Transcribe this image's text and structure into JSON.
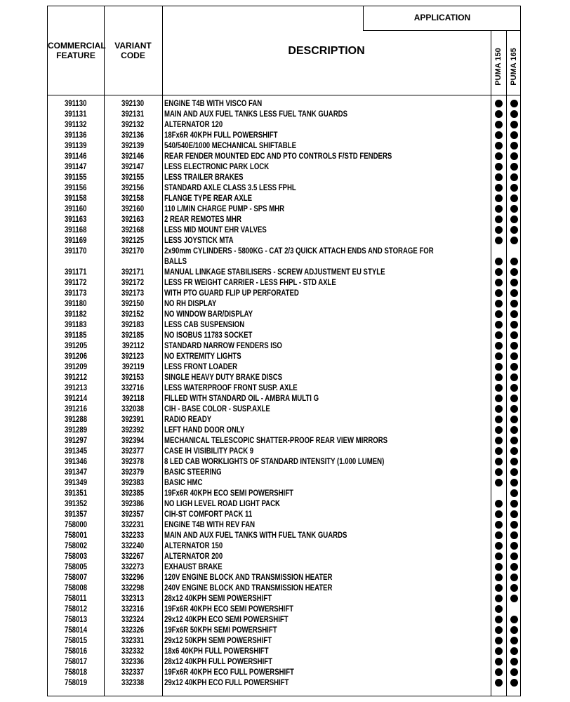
{
  "header": {
    "commercial_feature": [
      "COMMERCIAL",
      "FEATURE"
    ],
    "variant_code": [
      "VARIANT",
      "CODE"
    ],
    "description": "DESCRIPTION",
    "application": "APPLICATION",
    "models": [
      "PUMA 150",
      "PUMA 165"
    ]
  },
  "dot_symbol": "filled-circle",
  "rows": [
    {
      "cf": "391130",
      "vc": "392130",
      "desc": [
        "ENGINE T4B WITH VISCO FAN"
      ],
      "p150": true,
      "p165": true
    },
    {
      "cf": "391131",
      "vc": "392131",
      "desc": [
        "MAIN AND AUX FUEL TANKS LESS FUEL TANK GUARDS"
      ],
      "p150": true,
      "p165": true
    },
    {
      "cf": "391132",
      "vc": "392132",
      "desc": [
        "ALTERNATOR 120"
      ],
      "p150": true,
      "p165": true
    },
    {
      "cf": "391136",
      "vc": "392136",
      "desc": [
        "18Fx6R 40KPH FULL POWERSHIFT"
      ],
      "p150": true,
      "p165": true
    },
    {
      "cf": "391139",
      "vc": "392139",
      "desc": [
        "540/540E/1000 MECHANICAL SHIFTABLE"
      ],
      "p150": true,
      "p165": true
    },
    {
      "cf": "391146",
      "vc": "392146",
      "desc": [
        "REAR FENDER MOUNTED EDC AND PTO CONTROLS F/STD FENDERS"
      ],
      "p150": true,
      "p165": true
    },
    {
      "cf": "391147",
      "vc": "392147",
      "desc": [
        "LESS ELECTRONIC PARK LOCK"
      ],
      "p150": true,
      "p165": true
    },
    {
      "cf": "391155",
      "vc": "392155",
      "desc": [
        "LESS TRAILER BRAKES"
      ],
      "p150": true,
      "p165": true
    },
    {
      "cf": "391156",
      "vc": "392156",
      "desc": [
        "STANDARD AXLE CLASS 3.5 LESS FPHL"
      ],
      "p150": true,
      "p165": true
    },
    {
      "cf": "391158",
      "vc": "392158",
      "desc": [
        "FLANGE TYPE REAR AXLE"
      ],
      "p150": true,
      "p165": true
    },
    {
      "cf": "391160",
      "vc": "392160",
      "desc": [
        "110 L/MIN CHARGE PUMP - SPS MHR"
      ],
      "p150": true,
      "p165": true
    },
    {
      "cf": "391163",
      "vc": "392163",
      "desc": [
        "2 REAR REMOTES MHR"
      ],
      "p150": true,
      "p165": true
    },
    {
      "cf": "391168",
      "vc": "392168",
      "desc": [
        "LESS MID MOUNT EHR VALVES"
      ],
      "p150": true,
      "p165": true
    },
    {
      "cf": "391169",
      "vc": "392125",
      "desc": [
        "LESS JOYSTICK MTA"
      ],
      "p150": true,
      "p165": true
    },
    {
      "cf": "391170",
      "vc": "392170",
      "desc": [
        "2x90mm CYLINDERS - 5800KG - CAT 2/3 QUICK ATTACH ENDS AND STORAGE FOR",
        "BALLS"
      ],
      "p150": true,
      "p165": true
    },
    {
      "cf": "391171",
      "vc": "392171",
      "desc": [
        "MANUAL LINKAGE STABILISERS - SCREW ADJUSTMENT EU STYLE"
      ],
      "p150": true,
      "p165": true
    },
    {
      "cf": "391172",
      "vc": "392172",
      "desc": [
        "LESS FR WEIGHT CARRIER - LESS FHPL - STD AXLE"
      ],
      "p150": true,
      "p165": true
    },
    {
      "cf": "391173",
      "vc": "392173",
      "desc": [
        "WITH PTO GUARD FLIP UP PERFORATED"
      ],
      "p150": true,
      "p165": true
    },
    {
      "cf": "391180",
      "vc": "392150",
      "desc": [
        "NO RH DISPLAY"
      ],
      "p150": true,
      "p165": true
    },
    {
      "cf": "391182",
      "vc": "392152",
      "desc": [
        "NO WINDOW BAR/DISPLAY"
      ],
      "p150": true,
      "p165": true
    },
    {
      "cf": "391183",
      "vc": "392183",
      "desc": [
        "LESS CAB SUSPENSION"
      ],
      "p150": true,
      "p165": true
    },
    {
      "cf": "391185",
      "vc": "392185",
      "desc": [
        "NO ISOBUS 11783 SOCKET"
      ],
      "p150": true,
      "p165": true
    },
    {
      "cf": "391205",
      "vc": "392112",
      "desc": [
        "STANDARD NARROW FENDERS ISO"
      ],
      "p150": true,
      "p165": true
    },
    {
      "cf": "391206",
      "vc": "392123",
      "desc": [
        "NO EXTREMITY LIGHTS"
      ],
      "p150": true,
      "p165": true
    },
    {
      "cf": "391209",
      "vc": "392119",
      "desc": [
        "LESS FRONT LOADER"
      ],
      "p150": true,
      "p165": true
    },
    {
      "cf": "391212",
      "vc": "392153",
      "desc": [
        "SINGLE HEAVY DUTY BRAKE DISCS"
      ],
      "p150": true,
      "p165": true
    },
    {
      "cf": "391213",
      "vc": "332716",
      "desc": [
        "LESS WATERPROOF FRONT SUSP. AXLE"
      ],
      "p150": true,
      "p165": true
    },
    {
      "cf": "391214",
      "vc": "392118",
      "desc": [
        "FILLED WITH STANDARD OIL - AMBRA MULTI G"
      ],
      "p150": true,
      "p165": true
    },
    {
      "cf": "391216",
      "vc": "332038",
      "desc": [
        "CIH - BASE COLOR - SUSP.AXLE"
      ],
      "p150": true,
      "p165": true
    },
    {
      "cf": "391288",
      "vc": "392391",
      "desc": [
        "RADIO READY"
      ],
      "p150": true,
      "p165": true
    },
    {
      "cf": "391289",
      "vc": "392392",
      "desc": [
        "LEFT HAND DOOR ONLY"
      ],
      "p150": true,
      "p165": true
    },
    {
      "cf": "391297",
      "vc": "392394",
      "desc": [
        "MECHANICAL TELESCOPIC SHATTER-PROOF REAR VIEW MIRRORS"
      ],
      "p150": true,
      "p165": true
    },
    {
      "cf": "391345",
      "vc": "392377",
      "desc": [
        "CASE IH VISIBILITY PACK 9"
      ],
      "p150": true,
      "p165": true
    },
    {
      "cf": "391346",
      "vc": "392378",
      "desc": [
        "8 LED CAB WORKLIGHTS OF STANDARD INTENSITY (1.000 LUMEN)"
      ],
      "p150": true,
      "p165": true
    },
    {
      "cf": "391347",
      "vc": "392379",
      "desc": [
        "BASIC STEERING"
      ],
      "p150": true,
      "p165": true
    },
    {
      "cf": "391349",
      "vc": "392383",
      "desc": [
        "BASIC HMC"
      ],
      "p150": true,
      "p165": true
    },
    {
      "cf": "391351",
      "vc": "392385",
      "desc": [
        "19Fx6R 40KPH ECO SEMI POWERSHIFT"
      ],
      "p150": false,
      "p165": true
    },
    {
      "cf": "391352",
      "vc": "392386",
      "desc": [
        "NO LIGH LEVEL ROAD LIGHT PACK"
      ],
      "p150": true,
      "p165": true
    },
    {
      "cf": "391357",
      "vc": "392357",
      "desc": [
        "CIH-ST COMFORT PACK 11"
      ],
      "p150": true,
      "p165": true
    },
    {
      "cf": "758000",
      "vc": "332231",
      "desc": [
        "ENGINE T4B WITH REV FAN"
      ],
      "p150": true,
      "p165": true
    },
    {
      "cf": "758001",
      "vc": "332233",
      "desc": [
        "MAIN AND AUX FUEL TANKS WITH FUEL TANK GUARDS"
      ],
      "p150": true,
      "p165": true
    },
    {
      "cf": "758002",
      "vc": "332240",
      "desc": [
        "ALTERNATOR 150"
      ],
      "p150": true,
      "p165": true
    },
    {
      "cf": "758003",
      "vc": "332267",
      "desc": [
        "ALTERNATOR 200"
      ],
      "p150": true,
      "p165": true
    },
    {
      "cf": "758005",
      "vc": "332273",
      "desc": [
        "EXHAUST BRAKE"
      ],
      "p150": true,
      "p165": true
    },
    {
      "cf": "758007",
      "vc": "332296",
      "desc": [
        "120V ENGINE BLOCK AND TRANSMISSION HEATER"
      ],
      "p150": true,
      "p165": true
    },
    {
      "cf": "758008",
      "vc": "332298",
      "desc": [
        "240V ENGINE BLOCK AND TRANSMISSION HEATER"
      ],
      "p150": true,
      "p165": true
    },
    {
      "cf": "758011",
      "vc": "332313",
      "desc": [
        "28x12 40KPH SEMI POWERSHIFT"
      ],
      "p150": true,
      "p165": true
    },
    {
      "cf": "758012",
      "vc": "332316",
      "desc": [
        "19Fx6R 40KPH ECO SEMI POWERSHIFT"
      ],
      "p150": true,
      "p165": false
    },
    {
      "cf": "758013",
      "vc": "332324",
      "desc": [
        "29x12 40KPH ECO SEMI POWERSHIFT"
      ],
      "p150": true,
      "p165": true
    },
    {
      "cf": "758014",
      "vc": "332326",
      "desc": [
        "19Fx6R 50KPH SEMI POWERSHIFT"
      ],
      "p150": true,
      "p165": true
    },
    {
      "cf": "758015",
      "vc": "332331",
      "desc": [
        "29x12 50KPH SEMI POWERSHIFT"
      ],
      "p150": true,
      "p165": true
    },
    {
      "cf": "758016",
      "vc": "332332",
      "desc": [
        "18x6 40KPH FULL POWERSHIFT"
      ],
      "p150": true,
      "p165": true
    },
    {
      "cf": "758017",
      "vc": "332336",
      "desc": [
        "28x12 40KPH FULL POWERSHIFT"
      ],
      "p150": true,
      "p165": true
    },
    {
      "cf": "758018",
      "vc": "332337",
      "desc": [
        "19Fx6R 40KPH ECO FULL POWERSHIFT"
      ],
      "p150": true,
      "p165": true
    },
    {
      "cf": "758019",
      "vc": "332338",
      "desc": [
        "29x12 40KPH ECO FULL POWERSHIFT"
      ],
      "p150": true,
      "p165": true
    }
  ]
}
